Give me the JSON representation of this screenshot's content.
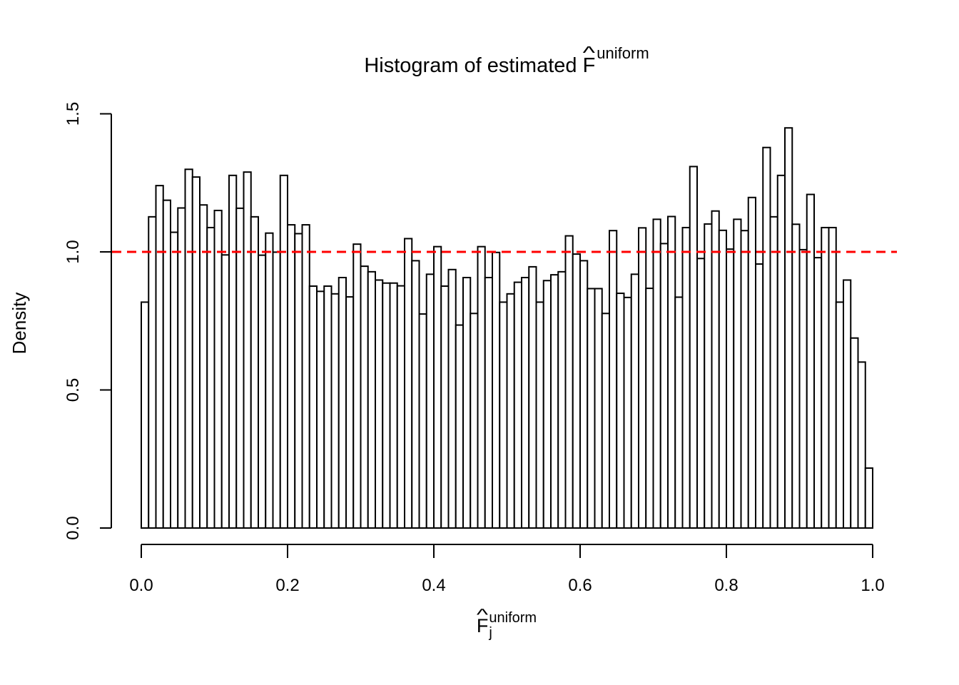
{
  "title": {
    "prefix": "Histogram of estimated ",
    "f": "F",
    "hat": "^",
    "superscript": "uniform"
  },
  "x_axis": {
    "label": {
      "f": "F",
      "hat": "^",
      "subscript": "j",
      "superscript": "uniform"
    },
    "tick_labels": [
      "0.0",
      "0.2",
      "0.4",
      "0.6",
      "0.8",
      "1.0"
    ],
    "tick_values": [
      0.0,
      0.2,
      0.4,
      0.6,
      0.8,
      1.0
    ]
  },
  "y_axis": {
    "label": "Density",
    "tick_labels": [
      "0.0",
      "0.5",
      "1.0",
      "1.5"
    ],
    "tick_values": [
      0.0,
      0.5,
      1.0,
      1.5
    ]
  },
  "reference_line": {
    "value": 1.0,
    "color": "#FF0000",
    "style": "dashed"
  },
  "colors": {
    "bar_fill": "#FFFFFF",
    "bar_stroke": "#000000",
    "axis": "#000000"
  },
  "chart_data": {
    "type": "bar",
    "title": "Histogram of estimated F-hat^uniform",
    "xlabel": "F-hat_j^uniform",
    "ylabel": "Density",
    "xlim": [
      0.0,
      1.0
    ],
    "ylim": [
      0.0,
      1.5
    ],
    "grid": false,
    "bin_start": 0.0,
    "bin_width": 0.01,
    "reference_line_y": 1.0,
    "densities": [
      0.818,
      1.127,
      1.24,
      1.187,
      1.071,
      1.159,
      1.299,
      1.271,
      1.17,
      1.088,
      1.15,
      0.989,
      1.277,
      1.158,
      1.289,
      1.127,
      0.988,
      1.068,
      0.999,
      1.277,
      1.098,
      1.066,
      1.098,
      0.876,
      0.857,
      0.876,
      0.848,
      0.907,
      0.837,
      1.028,
      0.948,
      0.928,
      0.898,
      0.887,
      0.887,
      0.877,
      1.048,
      0.968,
      0.775,
      0.919,
      1.019,
      0.876,
      0.936,
      0.735,
      0.907,
      0.777,
      1.019,
      0.907,
      0.998,
      0.818,
      0.848,
      0.89,
      0.907,
      0.946,
      0.818,
      0.896,
      0.917,
      0.928,
      1.058,
      0.992,
      0.968,
      0.867,
      0.867,
      0.777,
      1.077,
      0.85,
      0.835,
      0.919,
      1.087,
      0.868,
      1.118,
      1.03,
      1.128,
      0.836,
      1.088,
      1.309,
      0.976,
      1.101,
      1.148,
      1.078,
      1.01,
      1.118,
      1.077,
      1.197,
      0.956,
      1.378,
      1.127,
      1.277,
      1.449,
      1.1,
      1.008,
      1.208,
      0.979,
      1.088,
      1.088,
      0.818,
      0.898,
      0.688,
      0.601,
      0.217
    ]
  }
}
